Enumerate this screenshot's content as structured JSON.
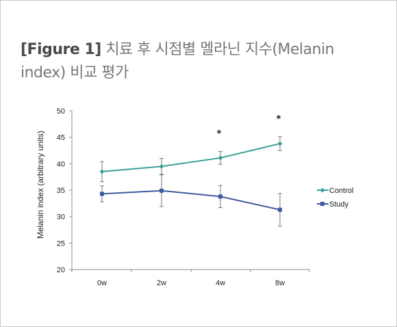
{
  "caption": {
    "tag": "[Figure 1]",
    "text": " 치료 후 시점별 멜라닌 지수(Melanin index) 비교 평가"
  },
  "chart_data": {
    "type": "line",
    "categories": [
      "0w",
      "2w",
      "4w",
      "8w"
    ],
    "ylabel": "Melanin index (arbitrary units)",
    "xlabel": "",
    "ylim": [
      20,
      50
    ],
    "yticks": [
      20,
      25,
      30,
      35,
      40,
      45,
      50
    ],
    "grid": false,
    "legend_position": "right",
    "series": [
      {
        "name": "Control",
        "color": "#3a9e97",
        "marker": "diamond",
        "values": [
          38.5,
          39.5,
          41.1,
          43.8
        ],
        "error": [
          1.9,
          1.5,
          1.2,
          1.3
        ]
      },
      {
        "name": "Study",
        "color": "#3f5a9e",
        "marker": "square",
        "values": [
          34.3,
          34.9,
          33.8,
          31.3
        ],
        "error": [
          1.5,
          3.0,
          2.1,
          3.1
        ]
      }
    ],
    "annotations": [
      {
        "category": "4w",
        "text": "*"
      },
      {
        "category": "8w",
        "text": "*"
      }
    ]
  }
}
